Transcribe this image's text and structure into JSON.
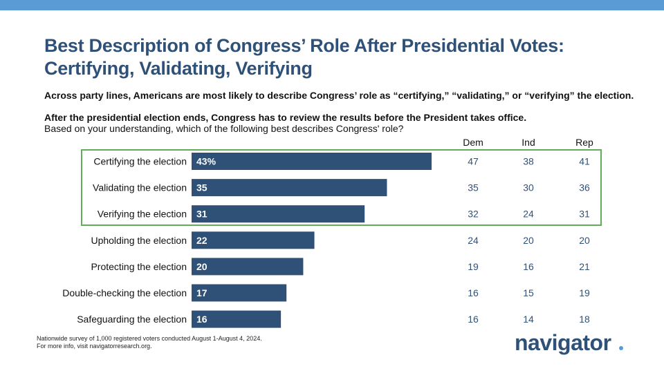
{
  "header": {
    "title": "Best Description of Congress’ Role After Presidential Votes: Certifying, Validating, Verifying",
    "subtitle": "Across party lines, Americans are most likely to describe Congress’ role as “certifying,” “validating,” or “verifying” the election.",
    "question": "After the presidential election ends, Congress has to review the results before the President takes office.",
    "question_detail": "Based on your understanding, which of the following best describes Congress' role?"
  },
  "columns": [
    "Dem",
    "Ind",
    "Rep"
  ],
  "chart_data": {
    "type": "bar",
    "orientation": "horizontal",
    "categories": [
      "Certifying the election",
      "Validating the election",
      "Verifying the election",
      "Upholding the election",
      "Protecting the election",
      "Double-checking the election",
      "Safeguarding the election"
    ],
    "values": [
      43,
      35,
      31,
      22,
      20,
      17,
      16
    ],
    "value_labels": [
      "43%",
      "35",
      "31",
      "22",
      "20",
      "17",
      "16"
    ],
    "bar_color": "#2f5178",
    "highlighted_rows": [
      0,
      1,
      2
    ],
    "highlight_color": "#5fad56",
    "party_values": {
      "Dem": [
        47,
        35,
        32,
        24,
        19,
        16,
        16
      ],
      "Ind": [
        38,
        30,
        24,
        20,
        16,
        15,
        14
      ],
      "Rep": [
        41,
        36,
        31,
        20,
        21,
        19,
        18
      ]
    },
    "party_value_color": "#2f5178",
    "xlim": [
      0,
      50
    ]
  },
  "footnote": {
    "line1": "Nationwide survey of 1,000 registered voters conducted August 1-August 4, 2024.",
    "line2": "For more info, visit navigatorresearch.org."
  },
  "brand": {
    "logo_text": "navigator",
    "accent": "#5b9bd5"
  }
}
